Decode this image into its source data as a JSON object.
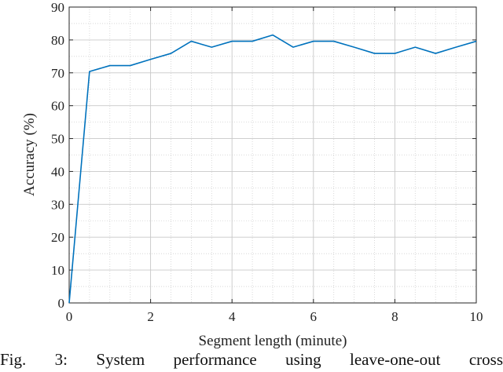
{
  "chart_data": {
    "type": "line",
    "title": "",
    "xlabel": "Segment length (minute)",
    "ylabel": "Accuracy (%)",
    "xlim": [
      0,
      10
    ],
    "ylim": [
      0,
      90
    ],
    "xticks": [
      0,
      2,
      4,
      6,
      8,
      10
    ],
    "yticks": [
      0,
      10,
      20,
      30,
      40,
      50,
      60,
      70,
      80,
      90
    ],
    "xtick_labels": [
      "0",
      "2",
      "4",
      "6",
      "8",
      "10"
    ],
    "ytick_labels": [
      "0",
      "10",
      "20",
      "30",
      "40",
      "50",
      "60",
      "70",
      "80",
      "90"
    ],
    "grid": true,
    "series": [
      {
        "color": "#0072bd",
        "x": [
          0,
          0.5,
          1,
          1.5,
          2,
          2.5,
          3,
          3.5,
          4,
          4.5,
          5,
          5.5,
          6,
          6.5,
          7,
          7.5,
          8,
          8.5,
          9,
          9.5,
          10
        ],
        "y": [
          0,
          70.4,
          72.2,
          72.2,
          74.1,
          75.9,
          79.6,
          77.8,
          79.6,
          79.6,
          81.5,
          77.8,
          79.6,
          79.6,
          77.8,
          75.9,
          75.9,
          77.8,
          75.9,
          77.8,
          79.6
        ]
      }
    ]
  },
  "caption": "Fig. 3: System performance using leave-one-out cross"
}
